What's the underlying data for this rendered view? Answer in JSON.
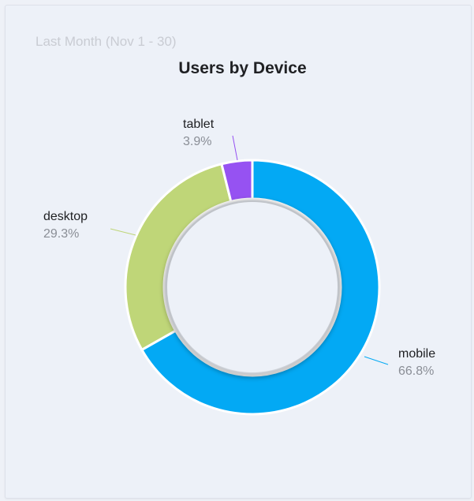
{
  "header": {
    "period": "Last Month (Nov 1 - 30)"
  },
  "chart_data": {
    "type": "pie",
    "variant": "donut",
    "title": "Users by Device",
    "slices": [
      {
        "label": "mobile",
        "value": 66.8,
        "display": "66.8%",
        "color": "#03a9f4"
      },
      {
        "label": "desktop",
        "value": 29.3,
        "display": "29.3%",
        "color": "#bfd678"
      },
      {
        "label": "tablet",
        "value": 3.9,
        "display": "3.9%",
        "color": "#9652f2"
      }
    ],
    "start_angle": "12 o'clock",
    "direction": "clockwise",
    "legend": "none (inline labels)"
  }
}
